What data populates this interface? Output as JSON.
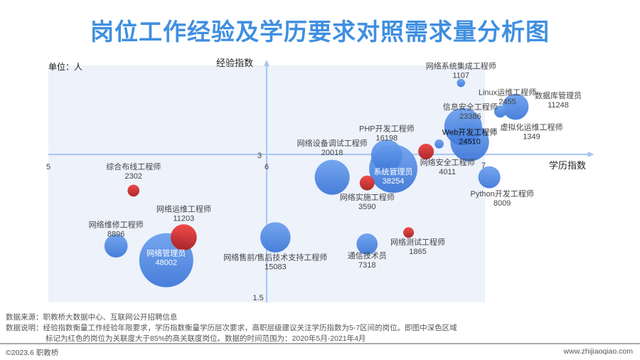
{
  "title": "岗位工作经验及学历要求对照需求量分析图",
  "chart_data": {
    "type": "bubble",
    "title": "岗位工作经验及学历要求对照需求量分析图",
    "xlabel": "学历指数",
    "ylabel": "经验指数",
    "unit": "单位：人",
    "x_ticks": [
      "5",
      "6",
      "7"
    ],
    "y_ticks": [
      "3",
      "1.5"
    ],
    "xlim": [
      5,
      7.5
    ],
    "ylim": [
      1.45,
      3.95
    ],
    "x_cross": 3,
    "y_cross": 6,
    "highlight_region": {
      "x": [
        5,
        7
      ]
    },
    "colors": {
      "normal": "#4a86e0",
      "high_relevance": "#e03030",
      "region": "#edf2fb",
      "axis": "#a9c6f0"
    },
    "points": [
      {
        "name": "网络系统集成工程师",
        "x": 6.89,
        "y": 3.75,
        "value": 1107,
        "high": false
      },
      {
        "name": "Linux运维工程师",
        "x": 7.07,
        "y": 3.45,
        "value": 2455,
        "high": false
      },
      {
        "name": "数据库管理员",
        "x": 7.14,
        "y": 3.5,
        "value": 11248,
        "high": false
      },
      {
        "name": "虚拟化运维工程师",
        "x": 6.79,
        "y": 3.11,
        "value": 1349,
        "high": false
      },
      {
        "name": "信息安全工程师",
        "x": 6.9,
        "y": 3.29,
        "value": 23386,
        "high": false
      },
      {
        "name": "Web开发工程师",
        "x": 6.93,
        "y": 3.13,
        "value": 24510,
        "high": false
      },
      {
        "name": "PHP开发工程师",
        "x": 6.55,
        "y": 2.99,
        "value": 16198,
        "high": false
      },
      {
        "name": "系统管理员",
        "x": 6.58,
        "y": 2.85,
        "value": 38254,
        "high": false
      },
      {
        "name": "网络设备调试工程师",
        "x": 6.3,
        "y": 2.76,
        "value": 20018,
        "high": false
      },
      {
        "name": "网络安全工程师",
        "x": 6.73,
        "y": 3.03,
        "value": 4011,
        "high": true
      },
      {
        "name": "网络实施工程师",
        "x": 6.46,
        "y": 2.7,
        "value": 3590,
        "high": true
      },
      {
        "name": "Python开发工程师",
        "x": 7.02,
        "y": 2.76,
        "value": 8009,
        "high": false
      },
      {
        "name": "综合布线工程师",
        "x": 5.39,
        "y": 2.62,
        "value": 2302,
        "high": true
      },
      {
        "name": "网络运维工程师",
        "x": 5.62,
        "y": 2.13,
        "value": 11203,
        "high": true
      },
      {
        "name": "网络维修工程师",
        "x": 5.31,
        "y": 2.04,
        "value": 8896,
        "high": false
      },
      {
        "name": "网络管理员",
        "x": 5.54,
        "y": 1.89,
        "value": 48002,
        "high": false
      },
      {
        "name": "网络售前/售后技术支持工程师",
        "x": 6.04,
        "y": 2.13,
        "value": 15083,
        "high": false
      },
      {
        "name": "通信技术员",
        "x": 6.46,
        "y": 2.06,
        "value": 7318,
        "high": false
      },
      {
        "name": "网络测试工程师",
        "x": 6.65,
        "y": 2.18,
        "value": 1865,
        "high": true
      }
    ]
  },
  "notes": {
    "source": "数据来源：职教桥大数据中心、互联网公开招聘信息",
    "desc1": "数据说明：经验指数衡量工作经验年限要求，学历指数衡量学历层次要求，高职层级建议关注学历指数为5-7区间的岗位。即图中深色区域",
    "desc2": "标记为红色的岗位为关联度大于85%的高关联度岗位。数据的时间范围为：2020年5月-2021年4月"
  },
  "footer": {
    "copyright": "©2023.6 职教桥",
    "site": "www.zhijiaoqiao.com"
  }
}
